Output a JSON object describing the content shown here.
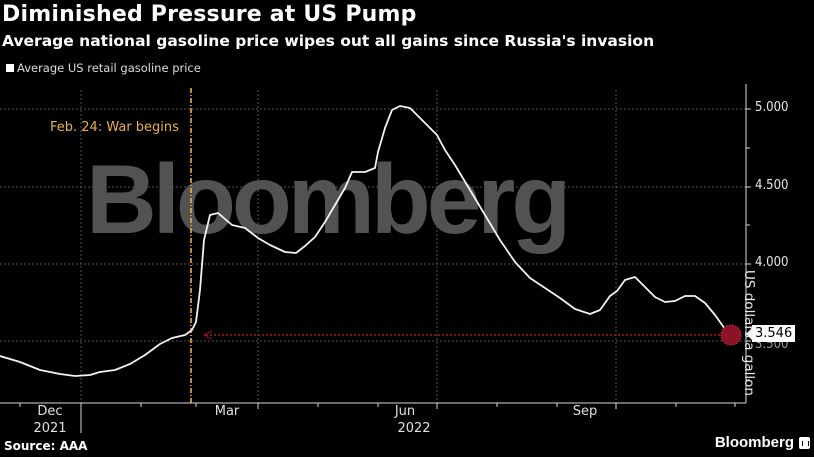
{
  "header": {
    "title": "Diminished Pressure at US Pump",
    "subtitle": "Average national gasoline price wipes out all gains since Russia's invasion"
  },
  "legend": {
    "series_label": "Average US retail gasoline price",
    "swatch_color": "#ffffff"
  },
  "watermark": "Bloomberg",
  "annotation": {
    "label": "Feb. 24: War begins",
    "color": "#e8b04a"
  },
  "last_value_callout": "3.546",
  "footer": {
    "source": "Source: AAA",
    "brand": "Bloomberg"
  },
  "chart_data": {
    "type": "line",
    "title": "Diminished Pressure at US Pump",
    "subtitle": "Average national gasoline price wipes out all gains since Russia's invasion",
    "xlabel": "",
    "ylabel": "US dollars a gallon",
    "ylim": [
      3.3,
      5.05
    ],
    "yticks": [
      "5.000",
      "4.500",
      "4.000",
      "3.500"
    ],
    "xticks": [
      {
        "label": "Dec",
        "year": "2021"
      },
      {
        "label": "Mar",
        "year": ""
      },
      {
        "label": "Jun",
        "year": "2022"
      },
      {
        "label": "Sep",
        "year": ""
      }
    ],
    "grid": true,
    "legend_position": "top-left",
    "series": [
      {
        "name": "Average US retail gasoline price",
        "color": "#ffffff",
        "approx_points": [
          {
            "date": "2021-11-01",
            "value": 3.41
          },
          {
            "date": "2021-12-01",
            "value": 3.36
          },
          {
            "date": "2022-01-01",
            "value": 3.29
          },
          {
            "date": "2022-02-01",
            "value": 3.44
          },
          {
            "date": "2022-02-24",
            "value": 3.54
          },
          {
            "date": "2022-03-11",
            "value": 4.33
          },
          {
            "date": "2022-04-01",
            "value": 4.22
          },
          {
            "date": "2022-04-20",
            "value": 4.07
          },
          {
            "date": "2022-05-15",
            "value": 4.45
          },
          {
            "date": "2022-05-25",
            "value": 4.6
          },
          {
            "date": "2022-06-14",
            "value": 5.02
          },
          {
            "date": "2022-07-01",
            "value": 4.81
          },
          {
            "date": "2022-08-01",
            "value": 4.09
          },
          {
            "date": "2022-09-20",
            "value": 3.68
          },
          {
            "date": "2022-10-12",
            "value": 3.92
          },
          {
            "date": "2022-11-01",
            "value": 3.76
          },
          {
            "date": "2022-11-15",
            "value": 3.79
          },
          {
            "date": "2022-12-05",
            "value": 3.546
          }
        ]
      }
    ],
    "annotations": [
      {
        "type": "vline",
        "date": "2022-02-24",
        "label": "Feb. 24: War begins",
        "color": "#e8b04a"
      },
      {
        "type": "hline_arrow",
        "value": 3.546,
        "color": "#a0182a"
      }
    ],
    "last_value": 3.546,
    "source": "AAA"
  },
  "plot_pixels": {
    "line": "0,356 20,362 40,370 60,374 75,376 90,375 100,372 115,370 130,364 145,355 160,344 172,338 185,335 192,330 196,322 200,290 204,240 210,215 218,213 225,219 232,225 245,228 258,238 270,245 285,252 296,253 305,246 315,237 325,222 335,205 345,188 352,172 365,172 375,168 378,152 385,128 392,110 400,106 410,108 420,118 430,128 437,135 445,150 455,165 470,190 485,215 500,240 515,262 530,278 545,288 560,298 575,309 590,314 600,310 610,296 617,291 625,280 635,277 645,287 655,297 665,302 675,301 685,296 695,296 705,303 715,315 725,329 731,334"
  }
}
